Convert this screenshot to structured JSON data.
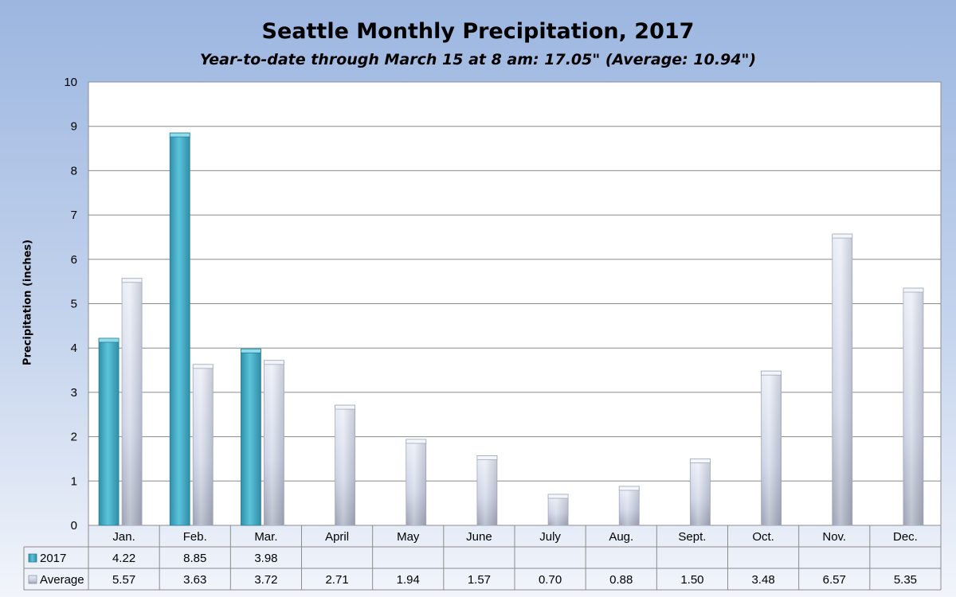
{
  "chart_data": {
    "type": "bar",
    "title": "Seattle Monthly Precipitation, 2017",
    "subtitle": "Year-to-date through March 15 at 8 am: 17.05\" (Average: 10.94\")",
    "ylabel": "Precipitation (inches)",
    "xlabel": "",
    "ylim": [
      0,
      10
    ],
    "yticks": [
      "0",
      "1",
      "2",
      "3",
      "4",
      "5",
      "6",
      "7",
      "8",
      "9",
      "10"
    ],
    "grid": true,
    "legend": "data-table-left",
    "categories": [
      "Jan.",
      "Feb.",
      "Mar.",
      "April",
      "May",
      "June",
      "July",
      "Aug.",
      "Sept.",
      "Oct.",
      "Nov.",
      "Dec."
    ],
    "series": [
      {
        "name": "2017",
        "color": "#4bb3cc",
        "values": [
          4.22,
          8.85,
          3.98,
          null,
          null,
          null,
          null,
          null,
          null,
          null,
          null,
          null
        ],
        "labels": [
          "4.22",
          "8.85",
          "3.98",
          "",
          "",
          "",
          "",
          "",
          "",
          "",
          "",
          ""
        ]
      },
      {
        "name": "Average",
        "color": "#c3cade",
        "values": [
          5.57,
          3.63,
          3.72,
          2.71,
          1.94,
          1.57,
          0.7,
          0.88,
          1.5,
          3.48,
          6.57,
          5.35
        ],
        "labels": [
          "5.57",
          "3.63",
          "3.72",
          "2.71",
          "1.94",
          "1.57",
          "0.70",
          "0.88",
          "1.50",
          "3.48",
          "6.57",
          "5.35"
        ]
      }
    ]
  }
}
